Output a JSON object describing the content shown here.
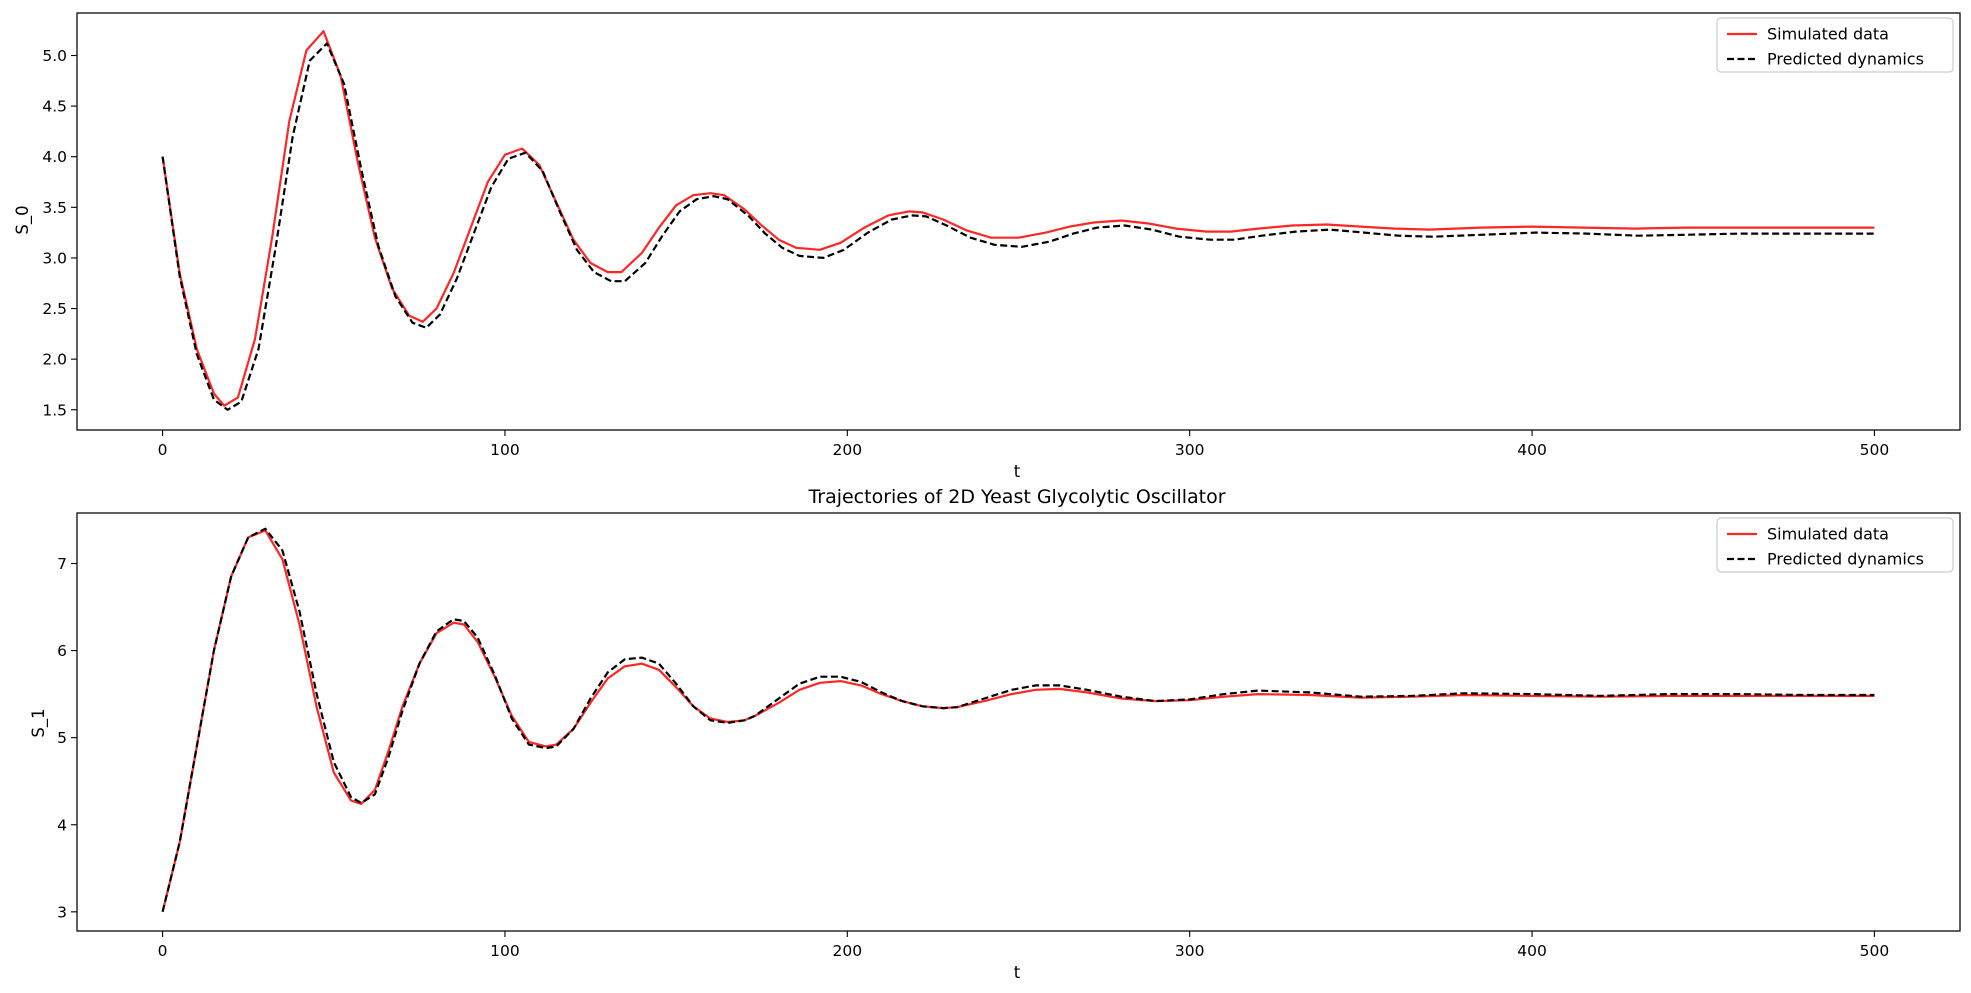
{
  "chart_data": [
    {
      "type": "line",
      "title": "",
      "xlabel": "t",
      "ylabel": "S_0",
      "xlim": [
        -25,
        525
      ],
      "ylim": [
        1.3,
        5.42
      ],
      "xticks": [
        0,
        100,
        200,
        300,
        400,
        500
      ],
      "yticks": [
        1.5,
        2.0,
        2.5,
        3.0,
        3.5,
        4.0,
        4.5,
        5.0
      ],
      "ytick_labels": [
        "1.5",
        "2.0",
        "2.5",
        "3.0",
        "3.5",
        "4.0",
        "4.5",
        "5.0"
      ],
      "grid": false,
      "legend_placement": "top-right",
      "series": [
        {
          "name": "Simulated data",
          "color": "#ff0000",
          "style": "solid",
          "x": [
            0,
            5,
            10,
            15,
            18,
            22,
            27,
            32,
            37,
            42,
            47,
            52,
            57,
            62,
            67,
            72,
            76,
            80,
            85,
            90,
            95,
            100,
            105,
            110,
            115,
            120,
            125,
            130,
            134,
            140,
            145,
            150,
            155,
            160,
            164,
            170,
            175,
            180,
            185,
            192,
            198,
            205,
            212,
            218,
            222,
            228,
            235,
            242,
            250,
            258,
            265,
            272,
            280,
            288,
            296,
            305,
            312,
            320,
            330,
            340,
            350,
            360,
            370,
            385,
            400,
            415,
            430,
            445,
            460,
            480,
            500
          ],
          "y": [
            4.0,
            2.85,
            2.1,
            1.66,
            1.54,
            1.62,
            2.2,
            3.2,
            4.35,
            5.05,
            5.24,
            4.8,
            3.95,
            3.2,
            2.7,
            2.43,
            2.37,
            2.5,
            2.85,
            3.3,
            3.75,
            4.02,
            4.08,
            3.92,
            3.55,
            3.18,
            2.95,
            2.86,
            2.86,
            3.05,
            3.3,
            3.52,
            3.62,
            3.64,
            3.62,
            3.48,
            3.32,
            3.18,
            3.1,
            3.08,
            3.15,
            3.3,
            3.42,
            3.46,
            3.45,
            3.38,
            3.27,
            3.2,
            3.2,
            3.25,
            3.31,
            3.35,
            3.37,
            3.34,
            3.29,
            3.26,
            3.26,
            3.29,
            3.32,
            3.33,
            3.31,
            3.29,
            3.28,
            3.3,
            3.31,
            3.3,
            3.29,
            3.3,
            3.3,
            3.3,
            3.3
          ]
        },
        {
          "name": "Predicted dynamics",
          "color": "#000000",
          "style": "dashed",
          "x": [
            0,
            5,
            10,
            15,
            19,
            23,
            28,
            33,
            38,
            43,
            48,
            53,
            58,
            63,
            68,
            73,
            77,
            81,
            86,
            91,
            96,
            101,
            106,
            111,
            116,
            121,
            126,
            131,
            135,
            141,
            146,
            151,
            156,
            161,
            165,
            171,
            176,
            181,
            186,
            193,
            199,
            206,
            213,
            219,
            223,
            229,
            236,
            243,
            251,
            259,
            266,
            273,
            281,
            289,
            297,
            306,
            313,
            321,
            331,
            341,
            351,
            361,
            371,
            386,
            401,
            416,
            431,
            446,
            461,
            481,
            500
          ],
          "y": [
            4.0,
            2.82,
            2.05,
            1.6,
            1.5,
            1.58,
            2.1,
            3.1,
            4.2,
            4.95,
            5.12,
            4.72,
            3.88,
            3.12,
            2.62,
            2.36,
            2.31,
            2.44,
            2.8,
            3.25,
            3.7,
            3.98,
            4.04,
            3.86,
            3.46,
            3.08,
            2.86,
            2.77,
            2.77,
            2.95,
            3.22,
            3.46,
            3.58,
            3.61,
            3.58,
            3.42,
            3.24,
            3.1,
            3.02,
            3.0,
            3.08,
            3.25,
            3.38,
            3.42,
            3.41,
            3.32,
            3.2,
            3.13,
            3.11,
            3.16,
            3.24,
            3.3,
            3.32,
            3.28,
            3.21,
            3.18,
            3.18,
            3.22,
            3.26,
            3.28,
            3.25,
            3.22,
            3.21,
            3.23,
            3.25,
            3.24,
            3.22,
            3.23,
            3.24,
            3.24,
            3.24
          ]
        }
      ]
    },
    {
      "type": "line",
      "title": "Trajectories of 2D Yeast Glycolytic Oscillator",
      "xlabel": "t",
      "ylabel": "S_1",
      "xlim": [
        -25,
        525
      ],
      "ylim": [
        2.78,
        7.58
      ],
      "xticks": [
        0,
        100,
        200,
        300,
        400,
        500
      ],
      "yticks": [
        3,
        4,
        5,
        6,
        7
      ],
      "ytick_labels": [
        "3",
        "4",
        "5",
        "6",
        "7"
      ],
      "grid": false,
      "legend_placement": "top-right",
      "series": [
        {
          "name": "Simulated data",
          "color": "#ff0000",
          "style": "solid",
          "x": [
            0,
            5,
            10,
            15,
            20,
            25,
            30,
            35,
            40,
            45,
            50,
            55,
            58,
            62,
            66,
            70,
            75,
            80,
            85,
            88,
            92,
            97,
            102,
            107,
            112,
            115,
            120,
            125,
            130,
            135,
            140,
            145,
            150,
            155,
            160,
            165,
            170,
            173,
            180,
            186,
            192,
            198,
            204,
            210,
            216,
            222,
            228,
            232,
            240,
            248,
            255,
            262,
            270,
            280,
            290,
            300,
            310,
            320,
            335,
            350,
            365,
            380,
            400,
            420,
            440,
            460,
            480,
            500
          ],
          "y": [
            3.0,
            3.8,
            4.9,
            6.0,
            6.85,
            7.3,
            7.38,
            7.05,
            6.3,
            5.35,
            4.6,
            4.28,
            4.24,
            4.4,
            4.85,
            5.35,
            5.85,
            6.2,
            6.32,
            6.3,
            6.1,
            5.7,
            5.25,
            4.95,
            4.9,
            4.92,
            5.1,
            5.4,
            5.68,
            5.82,
            5.85,
            5.78,
            5.58,
            5.36,
            5.22,
            5.18,
            5.2,
            5.25,
            5.4,
            5.55,
            5.63,
            5.65,
            5.6,
            5.5,
            5.42,
            5.36,
            5.34,
            5.35,
            5.42,
            5.5,
            5.55,
            5.56,
            5.52,
            5.45,
            5.42,
            5.43,
            5.47,
            5.5,
            5.49,
            5.46,
            5.47,
            5.49,
            5.48,
            5.47,
            5.48,
            5.48,
            5.48,
            5.48
          ]
        },
        {
          "name": "Predicted dynamics",
          "color": "#000000",
          "style": "dashed",
          "x": [
            0,
            5,
            10,
            15,
            20,
            25,
            30,
            35,
            40,
            45,
            50,
            55,
            58,
            62,
            66,
            70,
            75,
            80,
            85,
            88,
            92,
            97,
            102,
            107,
            112,
            115,
            120,
            125,
            130,
            135,
            140,
            145,
            150,
            155,
            160,
            165,
            170,
            173,
            180,
            186,
            192,
            198,
            204,
            210,
            216,
            222,
            228,
            232,
            240,
            248,
            255,
            262,
            270,
            280,
            290,
            300,
            310,
            320,
            335,
            350,
            365,
            380,
            400,
            420,
            440,
            460,
            480,
            500
          ],
          "y": [
            3.0,
            3.8,
            4.9,
            6.0,
            6.85,
            7.3,
            7.4,
            7.15,
            6.45,
            5.5,
            4.72,
            4.32,
            4.25,
            4.35,
            4.78,
            5.3,
            5.85,
            6.22,
            6.36,
            6.34,
            6.15,
            5.72,
            5.22,
            4.92,
            4.88,
            4.9,
            5.1,
            5.45,
            5.75,
            5.9,
            5.92,
            5.85,
            5.62,
            5.36,
            5.2,
            5.17,
            5.2,
            5.25,
            5.45,
            5.62,
            5.7,
            5.7,
            5.64,
            5.52,
            5.42,
            5.36,
            5.34,
            5.35,
            5.45,
            5.55,
            5.6,
            5.6,
            5.55,
            5.47,
            5.42,
            5.44,
            5.5,
            5.54,
            5.52,
            5.47,
            5.48,
            5.51,
            5.5,
            5.48,
            5.5,
            5.5,
            5.49,
            5.49
          ]
        }
      ]
    }
  ]
}
